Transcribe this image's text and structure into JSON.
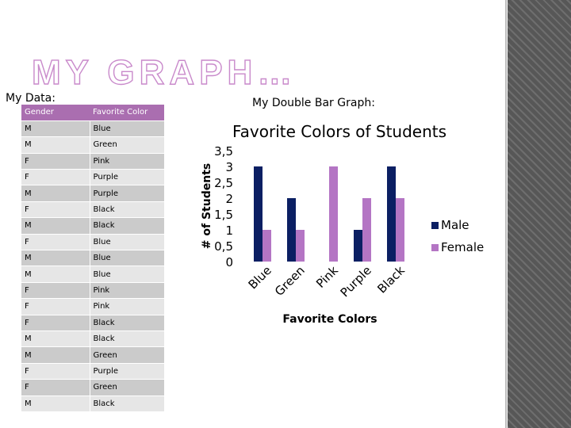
{
  "title": "MY GRAPH…",
  "data_heading": "My Data:",
  "graph_heading": "My Double Bar Graph:",
  "table": {
    "headers": [
      "Gender",
      "Favorite Color"
    ],
    "rows": [
      [
        "M",
        "Blue"
      ],
      [
        "M",
        "Green"
      ],
      [
        "F",
        "Pink"
      ],
      [
        "F",
        "Purple"
      ],
      [
        "M",
        "Purple"
      ],
      [
        "F",
        "Black"
      ],
      [
        "M",
        "Black"
      ],
      [
        "F",
        "Blue"
      ],
      [
        "M",
        "Blue"
      ],
      [
        "M",
        "Blue"
      ],
      [
        "F",
        "Pink"
      ],
      [
        "F",
        "Pink"
      ],
      [
        "F",
        "Black"
      ],
      [
        "M",
        "Black"
      ],
      [
        "M",
        "Green"
      ],
      [
        "F",
        "Purple"
      ],
      [
        "F",
        "Green"
      ],
      [
        "M",
        "Black"
      ]
    ]
  },
  "colors": {
    "male": "#0b1f63",
    "female": "#b475c4",
    "header": "#aa6eb0"
  },
  "chart_data": {
    "type": "bar",
    "title": "Favorite Colors of Students",
    "xlabel": "Favorite Colors",
    "ylabel": "# of Students",
    "categories": [
      "Blue",
      "Green",
      "Pink",
      "Purple",
      "Black"
    ],
    "series": [
      {
        "name": "Male",
        "values": [
          3,
          2,
          0,
          1,
          3
        ]
      },
      {
        "name": "Female",
        "values": [
          1,
          1,
          3,
          2,
          2
        ]
      }
    ],
    "ylim": [
      0,
      3.5
    ],
    "yticks": [
      "0",
      "0,5",
      "1",
      "1,5",
      "2",
      "2,5",
      "3",
      "3,5"
    ],
    "legend": "right",
    "grid": false
  }
}
